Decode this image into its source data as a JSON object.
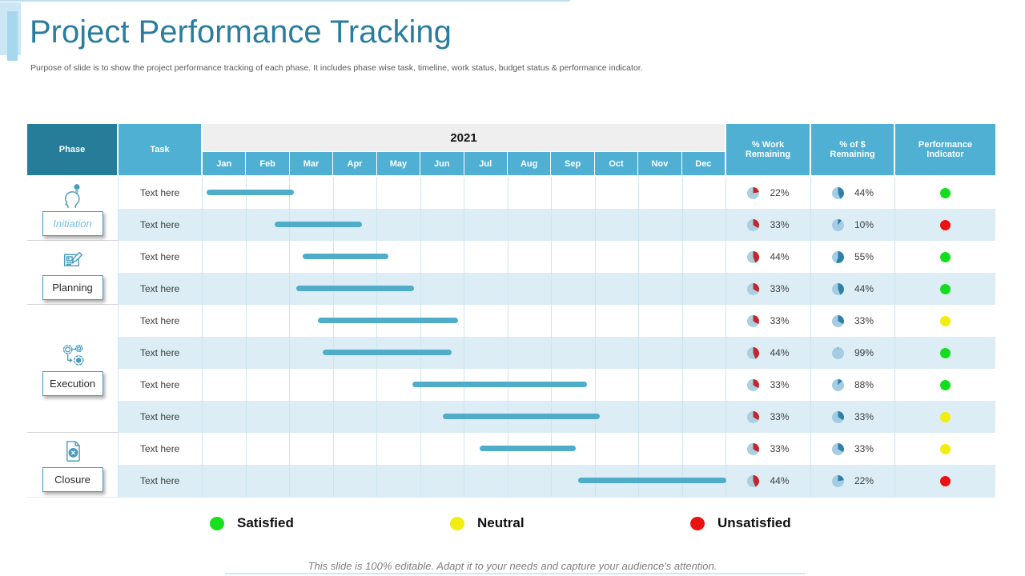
{
  "slide": {
    "title": "Project Performance Tracking",
    "subtitle": "Purpose of slide is to show the project performance tracking of each phase. It includes phase wise task, timeline, work status, budget status & performance indicator.",
    "footer": "This slide is 100% editable. Adapt it to your needs and capture your audience's attention."
  },
  "table": {
    "headers": {
      "phase": "Phase",
      "task": "Task",
      "year": "2021",
      "months": [
        "Jan",
        "Feb",
        "Mar",
        "Apr",
        "May",
        "Jun",
        "Jul",
        "Aug",
        "Sep",
        "Oct",
        "Nov",
        "Dec"
      ],
      "work": "% Work Remaining",
      "dollar": "% of $ Remaining",
      "performance": "Performance Indicator"
    },
    "phases": [
      {
        "name": "Initiation",
        "icon": "idea-head-icon",
        "rows": 2,
        "style": "italic"
      },
      {
        "name": "Planning",
        "icon": "blueprint-icon",
        "rows": 2
      },
      {
        "name": "Execution",
        "icon": "gears-icon",
        "rows": 4
      },
      {
        "name": "Closure",
        "icon": "document-icon",
        "rows": 2
      }
    ],
    "rows": [
      {
        "task": "Text here",
        "bar": {
          "start": 0.1,
          "end": 2.1
        },
        "work": "22%",
        "dollar": "44%",
        "status": "green"
      },
      {
        "task": "Text here",
        "bar": {
          "start": 1.65,
          "end": 3.65
        },
        "work": "33%",
        "dollar": "10%",
        "status": "red"
      },
      {
        "task": "Text here",
        "bar": {
          "start": 2.3,
          "end": 4.25
        },
        "work": "44%",
        "dollar": "55%",
        "status": "green"
      },
      {
        "task": "Text here",
        "bar": {
          "start": 2.15,
          "end": 4.85
        },
        "work": "33%",
        "dollar": "44%",
        "status": "green"
      },
      {
        "task": "Text here",
        "bar": {
          "start": 2.65,
          "end": 5.85
        },
        "work": "33%",
        "dollar": "33%",
        "status": "yellow"
      },
      {
        "task": "Text here",
        "bar": {
          "start": 2.75,
          "end": 5.7
        },
        "work": "44%",
        "dollar": "99%",
        "status": "green"
      },
      {
        "task": "Text here",
        "bar": {
          "start": 4.8,
          "end": 8.8
        },
        "work": "33%",
        "dollar": "88%",
        "status": "green"
      },
      {
        "task": "Text here",
        "bar": {
          "start": 5.5,
          "end": 9.1
        },
        "work": "33%",
        "dollar": "33%",
        "status": "yellow"
      },
      {
        "task": "Text here",
        "bar": {
          "start": 6.35,
          "end": 8.55
        },
        "work": "33%",
        "dollar": "33%",
        "status": "yellow"
      },
      {
        "task": "Text here",
        "bar": {
          "start": 8.6,
          "end": 12.0
        },
        "work": "44%",
        "dollar": "22%",
        "status": "red"
      }
    ]
  },
  "legend": [
    {
      "label": "Satisfied",
      "color": "#17e01c"
    },
    {
      "label": "Neutral",
      "color": "#f1ee0e"
    },
    {
      "label": "Unsatisfied",
      "color": "#ea1111"
    }
  ],
  "colors": {
    "title_teal": "#2a7d9e",
    "header_dark_teal": "#267d99",
    "header_blue": "#4fb0d4",
    "year_band_bg": "#efefef",
    "row_stripe": "#dcedf6",
    "gantt_bar": "#4fadc9",
    "grid_line": "#cde6f2",
    "work_pie_base": "#abcfdf",
    "work_pie_wedge": "#c5262c",
    "dollar_pie_base": "#a5cce2",
    "dollar_pie_wedge": "#2f80a9",
    "status": {
      "green": "#14dd1d",
      "yellow": "#f1ee0e",
      "red": "#ea1111"
    }
  }
}
